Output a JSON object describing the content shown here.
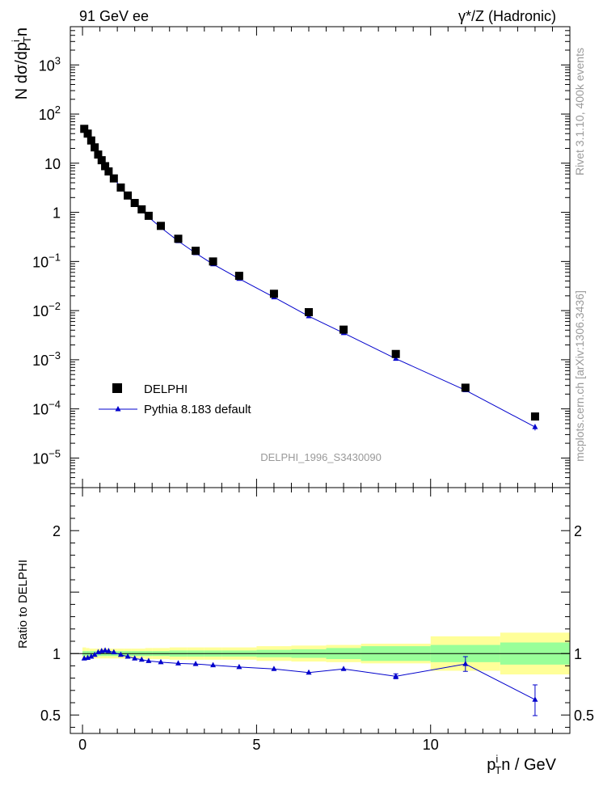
{
  "header": {
    "left": "91 GeV ee",
    "right": "γ*/Z (Hadronic)"
  },
  "side_labels": {
    "rivet": "Rivet 3.1.10,  400k events",
    "mcplots": "mcplots.cern.ch [arXiv:1306.3436]"
  },
  "analysis_label": "DELPHI_1996_S3430090",
  "colors": {
    "data": "#000000",
    "mc": "#0000cc",
    "band_outer": "#ffff99",
    "band_inner": "#99ff99",
    "watermark": "#999999"
  },
  "chart_data": [
    {
      "type": "scatter",
      "panel": "main",
      "title": "",
      "ylabel_parts": {
        "pre": "N dσ/dp",
        "sup": "i",
        "sub": "T",
        "post": "n"
      },
      "yscale": "log",
      "ylim": [
        2.5e-06,
        6000
      ],
      "xlim": [
        -0.35,
        14.0
      ],
      "y_ticks": [
        {
          "value": 1e-05,
          "mant": "10",
          "exp": "−5"
        },
        {
          "value": 0.0001,
          "mant": "10",
          "exp": "−4"
        },
        {
          "value": 0.001,
          "mant": "10",
          "exp": "−3"
        },
        {
          "value": 0.01,
          "mant": "10",
          "exp": "−2"
        },
        {
          "value": 0.1,
          "mant": "10",
          "exp": "−1"
        },
        {
          "value": 1,
          "mant": "1",
          "exp": ""
        },
        {
          "value": 10,
          "mant": "10",
          "exp": ""
        },
        {
          "value": 100,
          "mant": "10",
          "exp": "2"
        },
        {
          "value": 1000,
          "mant": "10",
          "exp": "3"
        }
      ],
      "legend": {
        "position": "lower-left",
        "entries": [
          "DELPHI",
          "Pythia 8.183 default"
        ]
      },
      "series": [
        {
          "name": "DELPHI",
          "marker": "square",
          "x": [
            0.05,
            0.15,
            0.25,
            0.35,
            0.45,
            0.55,
            0.65,
            0.75,
            0.9,
            1.1,
            1.3,
            1.5,
            1.7,
            1.9,
            2.25,
            2.75,
            3.25,
            3.75,
            4.5,
            5.5,
            6.5,
            7.5,
            9.0,
            11.0,
            13.0
          ],
          "y": [
            50,
            40,
            29,
            21,
            15,
            11.5,
            8.7,
            6.8,
            4.9,
            3.2,
            2.2,
            1.55,
            1.15,
            0.85,
            0.53,
            0.29,
            0.165,
            0.1,
            0.051,
            0.022,
            0.0093,
            0.0041,
            0.00131,
            0.00027,
            7e-05
          ]
        },
        {
          "name": "Pythia 8.183 default",
          "marker": "triangle",
          "x": [
            0.05,
            0.15,
            0.25,
            0.35,
            0.45,
            0.55,
            0.65,
            0.75,
            0.9,
            1.1,
            1.3,
            1.5,
            1.7,
            1.9,
            2.25,
            2.75,
            3.25,
            3.75,
            4.5,
            5.5,
            6.5,
            7.5,
            9.0,
            11.0,
            13.0
          ],
          "y": [
            48,
            38.6,
            28.3,
            21.2,
            15.4,
            11.9,
            9.0,
            7.0,
            5.0,
            3.18,
            2.14,
            1.49,
            1.09,
            0.8,
            0.49,
            0.26,
            0.148,
            0.088,
            0.0445,
            0.0187,
            0.0077,
            0.0035,
            0.00105,
            0.00024,
            4.27e-05
          ],
          "yerr_hi": [
            0,
            0,
            0,
            0,
            0,
            0,
            0,
            0,
            0,
            0,
            0,
            0,
            0,
            0,
            0,
            0,
            0,
            0,
            0,
            0,
            0,
            0,
            0,
            0,
            6.3e-06
          ],
          "yerr_lo": [
            0,
            0,
            0,
            0,
            0,
            0,
            0,
            0,
            0,
            0,
            0,
            0,
            0,
            0,
            0,
            0,
            0,
            0,
            0,
            0,
            0,
            0,
            0,
            0,
            6.3e-06
          ]
        }
      ]
    },
    {
      "type": "scatter",
      "panel": "ratio",
      "ylabel": "Ratio to DELPHI",
      "xlabel_parts": {
        "pre": "p",
        "sup": "i",
        "sub": "T",
        "post": "n / GeV"
      },
      "xlim": [
        -0.35,
        14.0
      ],
      "ylim": [
        0.35,
        2.35
      ],
      "x_ticks": [
        {
          "value": 0,
          "label": "0"
        },
        {
          "value": 5,
          "label": "5"
        },
        {
          "value": 10,
          "label": "10"
        }
      ],
      "y_ticks": [
        {
          "value": 0.5,
          "label": "0.5"
        },
        {
          "value": 1,
          "label": "1"
        },
        {
          "value": 2,
          "label": "2"
        }
      ],
      "bands": {
        "edges": [
          0,
          0.1,
          0.2,
          0.3,
          0.4,
          0.5,
          0.6,
          0.7,
          0.8,
          1.0,
          1.2,
          1.4,
          1.6,
          1.8,
          2.0,
          2.5,
          3.0,
          3.5,
          4.0,
          5.0,
          6.0,
          7.0,
          8.0,
          10.0,
          12.0,
          14.0
        ],
        "outer": [
          0.05,
          0.045,
          0.04,
          0.04,
          0.04,
          0.04,
          0.04,
          0.04,
          0.04,
          0.04,
          0.04,
          0.04,
          0.04,
          0.045,
          0.045,
          0.05,
          0.05,
          0.05,
          0.05,
          0.06,
          0.065,
          0.07,
          0.08,
          0.14,
          0.17,
          0.24
        ],
        "inner": [
          0.02,
          0.02,
          0.02,
          0.02,
          0.02,
          0.02,
          0.02,
          0.02,
          0.02,
          0.02,
          0.02,
          0.02,
          0.02,
          0.02,
          0.02,
          0.025,
          0.025,
          0.025,
          0.025,
          0.03,
          0.035,
          0.045,
          0.06,
          0.07,
          0.09,
          0.13
        ]
      },
      "series": [
        {
          "name": "Pythia 8.183 default",
          "x": [
            0.05,
            0.15,
            0.25,
            0.35,
            0.45,
            0.55,
            0.65,
            0.75,
            0.9,
            1.1,
            1.3,
            1.5,
            1.7,
            1.9,
            2.25,
            2.75,
            3.25,
            3.75,
            4.5,
            5.5,
            6.5,
            7.5,
            9.0,
            11.0,
            13.0
          ],
          "y": [
            0.96,
            0.965,
            0.975,
            0.99,
            1.01,
            1.02,
            1.025,
            1.02,
            1.01,
            0.99,
            0.975,
            0.96,
            0.95,
            0.94,
            0.93,
            0.92,
            0.915,
            0.905,
            0.89,
            0.875,
            0.845,
            0.875,
            0.815,
            0.915,
            0.625
          ],
          "yerr_hi": [
            0,
            0,
            0,
            0,
            0,
            0,
            0,
            0,
            0,
            0,
            0,
            0,
            0,
            0,
            0,
            0,
            0,
            0,
            0,
            0,
            0,
            0,
            0.02,
            0.06,
            0.12
          ],
          "yerr_lo": [
            0,
            0,
            0,
            0,
            0,
            0,
            0,
            0,
            0,
            0,
            0,
            0,
            0,
            0,
            0,
            0,
            0,
            0,
            0,
            0,
            0,
            0,
            0.02,
            0.06,
            0.13
          ]
        }
      ]
    }
  ]
}
